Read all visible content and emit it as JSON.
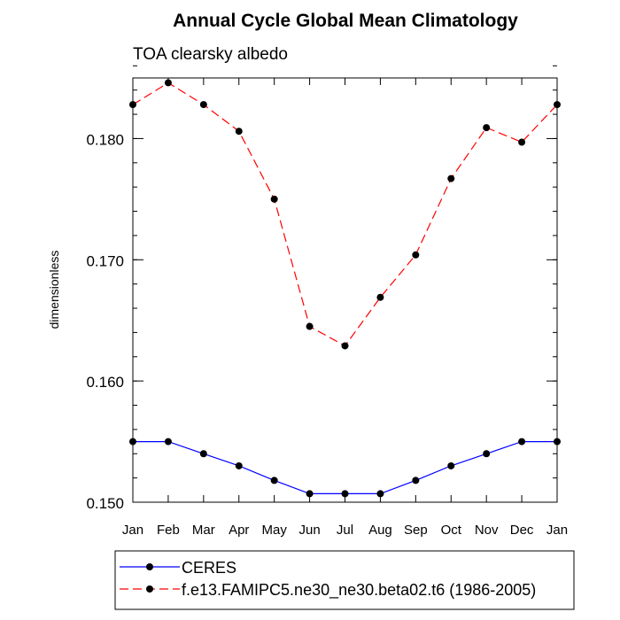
{
  "chart_data": {
    "type": "line",
    "title": "Annual Cycle Global Mean Climatology",
    "subtitle": "TOA clearsky albedo",
    "ylabel": "dimensionless",
    "xlabel": "",
    "categories": [
      "Jan",
      "Feb",
      "Mar",
      "Apr",
      "May",
      "Jun",
      "Jul",
      "Aug",
      "Sep",
      "Oct",
      "Nov",
      "Dec",
      "Jan"
    ],
    "ylim": [
      0.15,
      0.185
    ],
    "yticks": [
      0.15,
      0.16,
      0.17,
      0.18
    ],
    "ytick_labels": [
      "0.150",
      "0.160",
      "0.170",
      "0.180"
    ],
    "yminor_step": 0.002,
    "grid": false,
    "legend_position": "bottom",
    "series": [
      {
        "name": "CERES",
        "color": "#0000ff",
        "dashed": false,
        "values": [
          0.155,
          0.155,
          0.154,
          0.153,
          0.1518,
          0.1507,
          0.1507,
          0.1507,
          0.1518,
          0.153,
          0.154,
          0.155,
          0.155
        ]
      },
      {
        "name": "f.e13.FAMIPC5.ne30_ne30.beta02.t6 (1986-2005)",
        "color": "#ff0000",
        "dashed": true,
        "values": [
          0.1828,
          0.1846,
          0.1828,
          0.1806,
          0.175,
          0.1645,
          0.1629,
          0.1669,
          0.1704,
          0.1767,
          0.1809,
          0.1797,
          0.1828
        ]
      }
    ]
  }
}
